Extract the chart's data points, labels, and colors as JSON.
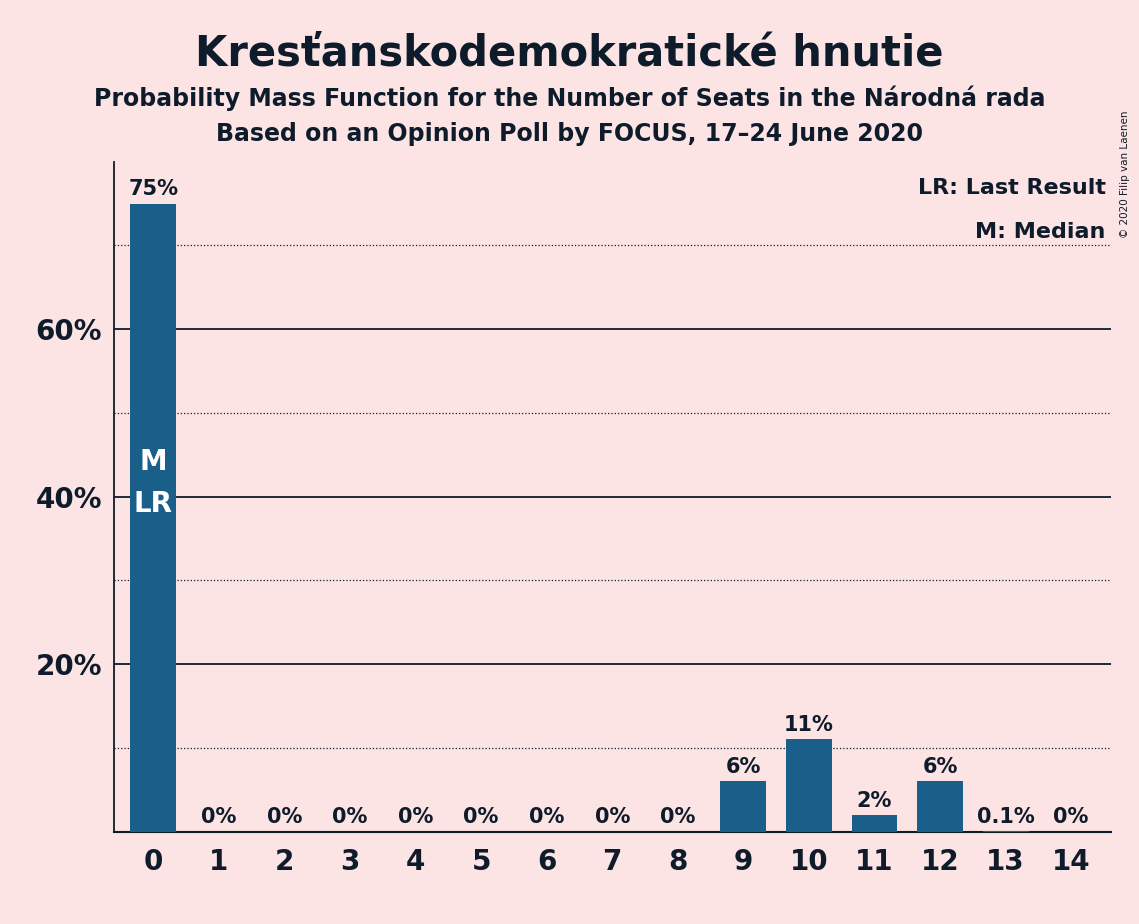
{
  "title": "Kresťanskodemokratické hnutie",
  "subtitle1": "Probability Mass Function for the Number of Seats in the Národná rada",
  "subtitle2": "Based on an Opinion Poll by FOCUS, 17–24 June 2020",
  "copyright": "© 2020 Filip van Laenen",
  "categories": [
    0,
    1,
    2,
    3,
    4,
    5,
    6,
    7,
    8,
    9,
    10,
    11,
    12,
    13,
    14
  ],
  "values": [
    0.75,
    0.0,
    0.0,
    0.0,
    0.0,
    0.0,
    0.0,
    0.0,
    0.0,
    0.06,
    0.11,
    0.02,
    0.06,
    0.001,
    0.0
  ],
  "labels": [
    "75%",
    "0%",
    "0%",
    "0%",
    "0%",
    "0%",
    "0%",
    "0%",
    "0%",
    "6%",
    "11%",
    "2%",
    "6%",
    "0.1%",
    "0%"
  ],
  "bar_color": "#1a5f8a",
  "background_color": "#fce4e4",
  "median_label": "M",
  "last_result_label": "LR",
  "ylim": [
    0,
    0.8
  ],
  "yticks": [
    0.2,
    0.4,
    0.6
  ],
  "ytick_labels": [
    "20%",
    "40%",
    "60%"
  ],
  "solid_gridlines": [
    0.2,
    0.4,
    0.6
  ],
  "dotted_gridlines": [
    0.1,
    0.3,
    0.5,
    0.7
  ],
  "legend_lr": "LR: Last Result",
  "legend_m": "M: Median",
  "title_fontsize": 30,
  "subtitle_fontsize": 17,
  "axis_fontsize": 20,
  "bar_label_fontsize": 15,
  "inner_label_fontsize": 20,
  "legend_fontsize": 16,
  "text_color": "#0d1b2a"
}
